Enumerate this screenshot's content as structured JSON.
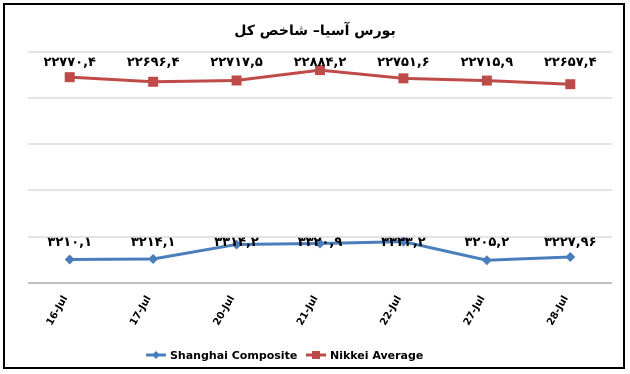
{
  "chart_data": {
    "type": "line",
    "title": "بورس آسیا– شاخص کل",
    "categories": [
      "16-Jul",
      "17-Jul",
      "20-Jul",
      "21-Jul",
      "22-Jul",
      "27-Jul",
      "28-Jul"
    ],
    "series": [
      {
        "name": "Shanghai Composite",
        "color": "#4a7ebb",
        "marker": "diamond",
        "values": [
          3210.1,
          3214.1,
          3314.2,
          3320.9,
          3333.2,
          3205.2,
          3227.96
        ],
        "labels": [
          "۳۲۱۰,۱",
          "۳۲۱۴,۱",
          "۳۳۱۴,۲",
          "۳۳۲۰,۹",
          "۳۳۳۳,۲",
          "۳۲۰۵,۲",
          "۳۲۲۷,۹۶"
        ]
      },
      {
        "name": "Nikkei Average",
        "color": "#be4b48",
        "marker": "square",
        "values": [
          22770.4,
          22696.4,
          22717.5,
          22884.2,
          22751.6,
          22715.9,
          22657.4
        ],
        "labels": [
          "۲۲۷۷۰,۴",
          "۲۲۶۹۶,۴",
          "۲۲۷۱۷,۵",
          "۲۲۸۸۴,۲",
          "۲۲۷۵۱,۶",
          "۲۲۷۱۵,۹",
          "۲۲۶۵۷,۴"
        ]
      }
    ],
    "grid": true,
    "legend_position": "bottom",
    "ylabel": "",
    "xlabel": ""
  }
}
